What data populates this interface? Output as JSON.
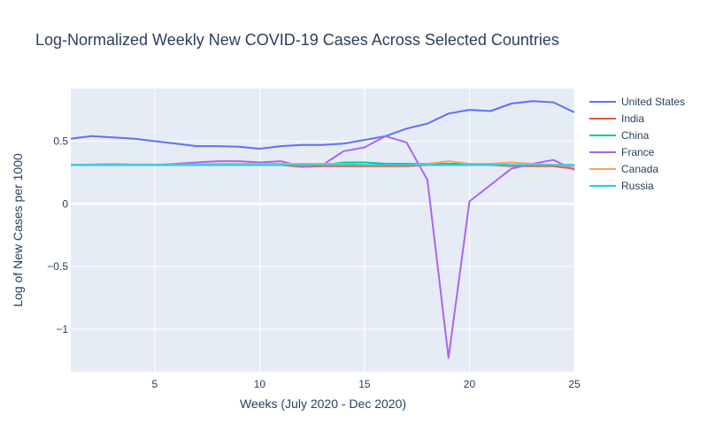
{
  "chart_data": {
    "type": "line",
    "title": "Log-Normalized Weekly New COVID-19 Cases Across Selected Countries",
    "xlabel": "Weeks (July 2020 - Dec 2020)",
    "ylabel": "Log of New Cases per 1000",
    "xlim": [
      1,
      25
    ],
    "ylim": [
      -1.34,
      0.92
    ],
    "x_ticks": [
      5,
      10,
      15,
      20,
      25
    ],
    "y_ticks": [
      0.5,
      0,
      -0.5,
      -1
    ],
    "y_tick_labels": [
      "0.5",
      "0",
      "−0.5",
      "−1"
    ],
    "grid": true,
    "legend_position": "top-right",
    "x": [
      1,
      2,
      3,
      4,
      5,
      6,
      7,
      8,
      9,
      10,
      11,
      12,
      13,
      14,
      15,
      16,
      17,
      18,
      19,
      20,
      21,
      22,
      23,
      24,
      25
    ],
    "series": [
      {
        "name": "United States",
        "color": "#636efa",
        "values": [
          0.52,
          0.54,
          0.53,
          0.52,
          0.5,
          0.48,
          0.46,
          0.46,
          0.455,
          0.44,
          0.46,
          0.47,
          0.47,
          0.48,
          0.51,
          0.54,
          0.6,
          0.64,
          0.72,
          0.75,
          0.74,
          0.8,
          0.82,
          0.81,
          0.73
        ]
      },
      {
        "name": "India",
        "color": "#EF553B",
        "values": [
          0.31,
          0.31,
          0.31,
          0.31,
          0.31,
          0.31,
          0.31,
          0.31,
          0.31,
          0.31,
          0.31,
          0.295,
          0.3,
          0.3,
          0.3,
          0.3,
          0.3,
          0.31,
          0.31,
          0.31,
          0.31,
          0.3,
          0.3,
          0.3,
          0.28
        ]
      },
      {
        "name": "China",
        "color": "#00cc96",
        "values": [
          0.31,
          0.31,
          0.31,
          0.31,
          0.31,
          0.31,
          0.31,
          0.31,
          0.31,
          0.31,
          0.31,
          0.31,
          0.31,
          0.33,
          0.33,
          0.32,
          0.32,
          0.32,
          0.32,
          0.32,
          0.32,
          0.31,
          0.31,
          0.31,
          0.31
        ]
      },
      {
        "name": "France",
        "color": "#ab63fa",
        "values": [
          0.31,
          0.31,
          0.31,
          0.31,
          0.31,
          0.32,
          0.33,
          0.34,
          0.34,
          0.33,
          0.34,
          0.3,
          0.31,
          0.42,
          0.45,
          0.54,
          0.49,
          0.19,
          -1.23,
          0.02,
          0.15,
          0.28,
          0.32,
          0.35,
          0.27
        ]
      },
      {
        "name": "Canada",
        "color": "#FFA15A",
        "values": [
          0.31,
          0.315,
          0.32,
          0.315,
          0.315,
          0.315,
          0.315,
          0.32,
          0.32,
          0.32,
          0.32,
          0.32,
          0.32,
          0.32,
          0.31,
          0.31,
          0.31,
          0.32,
          0.34,
          0.32,
          0.32,
          0.33,
          0.32,
          0.31,
          0.3
        ]
      },
      {
        "name": "Russia",
        "color": "#19d3f3",
        "values": [
          0.31,
          0.31,
          0.31,
          0.31,
          0.31,
          0.31,
          0.31,
          0.31,
          0.31,
          0.31,
          0.31,
          0.31,
          0.31,
          0.31,
          0.31,
          0.31,
          0.31,
          0.31,
          0.31,
          0.31,
          0.31,
          0.31,
          0.31,
          0.31,
          0.31
        ]
      }
    ]
  }
}
